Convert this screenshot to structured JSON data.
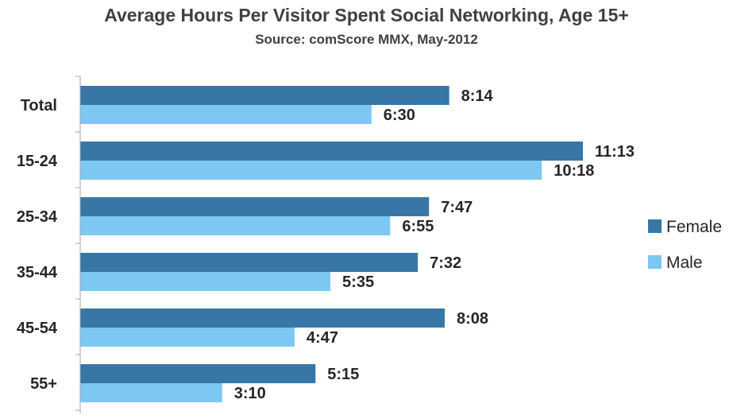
{
  "chart_data": {
    "type": "bar",
    "orientation": "horizontal",
    "title": "Average Hours Per Visitor Spent Social Networking, Age 15+",
    "subtitle": "Source: comScore MMX, May-2012",
    "categories": [
      "Total",
      "15-24",
      "25-34",
      "35-44",
      "45-54",
      "55+"
    ],
    "series": [
      {
        "name": "Female",
        "color": "#3876a6",
        "values": [
          8.233,
          11.217,
          7.783,
          7.533,
          8.133,
          5.25
        ],
        "labels": [
          "8:14",
          "11:13",
          "7:47",
          "7:32",
          "8:08",
          "5:15"
        ]
      },
      {
        "name": "Male",
        "color": "#7cc8f2",
        "values": [
          6.5,
          10.3,
          6.917,
          5.583,
          4.783,
          3.167
        ],
        "labels": [
          "6:30",
          "10:18",
          "6:55",
          "5:35",
          "4:47",
          "3:10"
        ]
      }
    ],
    "xlim": [
      0,
      12.0
    ],
    "grid": false,
    "legend": "right"
  }
}
